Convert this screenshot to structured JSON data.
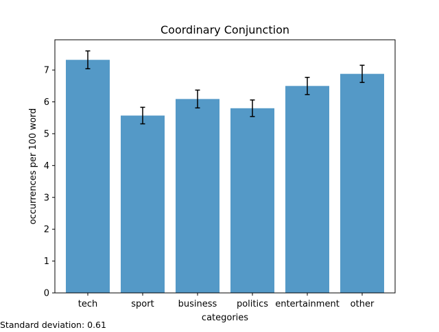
{
  "chart_data": {
    "type": "bar",
    "title": "Coordinary Conjunction",
    "xlabel": "categories",
    "ylabel": "occurrences per 100 word",
    "categories": [
      "tech",
      "sport",
      "business",
      "politics",
      "entertainment",
      "other"
    ],
    "values": [
      7.32,
      5.57,
      6.09,
      5.8,
      6.5,
      6.88
    ],
    "error": [
      0.28,
      0.26,
      0.28,
      0.26,
      0.27,
      0.27
    ],
    "ylim": [
      0,
      7.95
    ],
    "yticks": [
      0,
      1,
      2,
      3,
      4,
      5,
      6,
      7
    ],
    "bar_color": "#5499c7",
    "error_color": "#000000",
    "grid": false,
    "legend": "none"
  },
  "footnote": {
    "label": "Standard deviation: 0.61"
  }
}
